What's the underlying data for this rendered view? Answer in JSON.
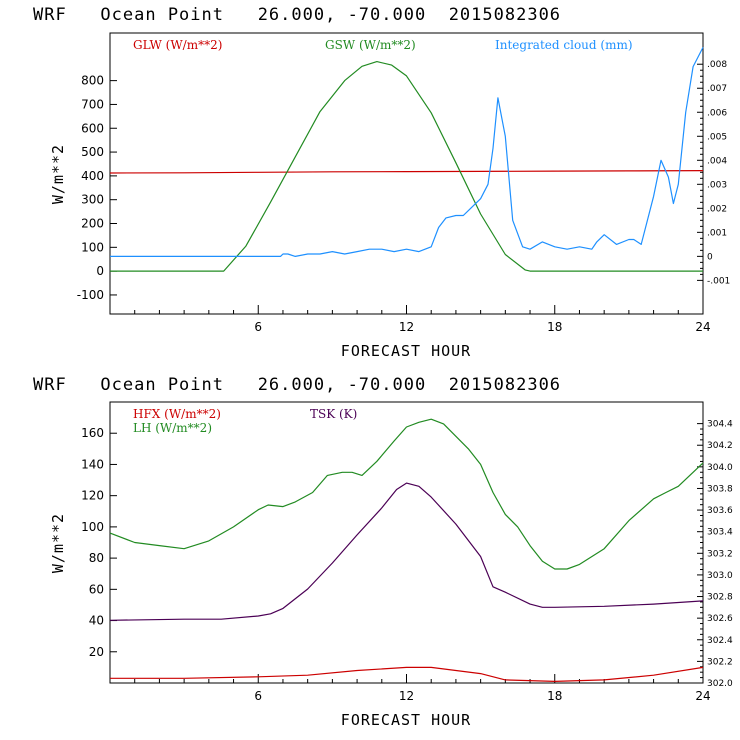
{
  "chart_data": [
    {
      "type": "line",
      "title": "WRF   Ocean Point   26.000, -70.000  2015082306",
      "xlabel": "FORECAST HOUR",
      "ylabel": "W/m**2",
      "xlim": [
        0,
        24
      ],
      "ylim": [
        -180,
        1000
      ],
      "xticks": [
        6,
        12,
        18,
        24
      ],
      "yticks": [
        -100,
        0,
        100,
        200,
        300,
        400,
        500,
        600,
        700,
        800
      ],
      "y2lim": [
        -0.0024,
        0.0093
      ],
      "y2ticks": [
        -0.001,
        0,
        0.001,
        0.002,
        0.003,
        0.004,
        0.005,
        0.006,
        0.007,
        0.008
      ],
      "y2ticklabels": [
        "-.001",
        "0",
        ".001",
        ".002",
        ".003",
        ".004",
        ".005",
        ".006",
        ".007",
        ".008"
      ],
      "series": [
        {
          "name": "GLW (W/m**2)",
          "color": "#cc0000",
          "axis": "left",
          "x": [
            0,
            3,
            6,
            9,
            12,
            15,
            18,
            21,
            24
          ],
          "y": [
            412,
            413,
            415,
            417,
            418,
            419,
            420,
            421,
            422
          ]
        },
        {
          "name": "GSW (W/m**2)",
          "color": "#228b22",
          "axis": "left",
          "x": [
            0,
            4.6,
            5.5,
            6.5,
            7.5,
            8.5,
            9.5,
            10.2,
            10.8,
            11.4,
            12,
            13,
            14,
            15,
            16,
            16.8,
            17,
            24
          ],
          "y": [
            0,
            0,
            105,
            290,
            480,
            670,
            800,
            860,
            880,
            865,
            820,
            665,
            455,
            240,
            70,
            5,
            0,
            0
          ]
        },
        {
          "name": "Integrated cloud (mm)",
          "color": "#1e90ff",
          "axis": "right",
          "x": [
            0,
            3,
            6,
            6.9,
            7.0,
            7.2,
            7.5,
            8,
            8.5,
            9,
            9.5,
            10,
            10.5,
            11,
            11.5,
            12,
            12.5,
            13,
            13.3,
            13.6,
            14,
            14.3,
            14.6,
            15,
            15.3,
            15.5,
            15.7,
            16,
            16.3,
            16.7,
            17,
            17.5,
            18,
            18.5,
            19,
            19.5,
            19.7,
            20,
            20.5,
            21,
            21.2,
            21.5,
            22,
            22.3,
            22.6,
            22.8,
            23,
            23.3,
            23.6,
            24
          ],
          "y": [
            0,
            0,
            0,
            0,
            0.0001,
            0.0001,
            0,
            0.0001,
            0.0001,
            0.0002,
            0.0001,
            0.0002,
            0.0003,
            0.0003,
            0.0002,
            0.0003,
            0.0002,
            0.0004,
            0.0012,
            0.0016,
            0.0017,
            0.0017,
            0.002,
            0.0024,
            0.003,
            0.0045,
            0.0066,
            0.005,
            0.0015,
            0.0004,
            0.0003,
            0.0006,
            0.0004,
            0.0003,
            0.0004,
            0.0003,
            0.0006,
            0.0009,
            0.0005,
            0.0007,
            0.0007,
            0.0005,
            0.0025,
            0.004,
            0.0033,
            0.0022,
            0.003,
            0.006,
            0.0079,
            0.0087
          ]
        }
      ]
    },
    {
      "type": "line",
      "title": "WRF   Ocean Point   26.000, -70.000  2015082306",
      "xlabel": "FORECAST HOUR",
      "ylabel": "W/m**2",
      "xlim": [
        0,
        24
      ],
      "ylim": [
        0,
        180
      ],
      "xticks": [
        6,
        12,
        18,
        24
      ],
      "yticks": [
        20,
        40,
        60,
        80,
        100,
        120,
        140,
        160
      ],
      "y2lim": [
        302.0,
        304.6
      ],
      "y2ticks": [
        302.0,
        302.2,
        302.4,
        302.6,
        302.8,
        303.0,
        303.2,
        303.4,
        303.6,
        303.8,
        304.0,
        304.2,
        304.4
      ],
      "y2ticklabels": [
        "302.0",
        "302.2",
        "302.4",
        "302.6",
        "302.8",
        "303.0",
        "303.2",
        "303.4",
        "303.6",
        "303.8",
        "304.0",
        "304.2",
        "304.4"
      ],
      "series": [
        {
          "name": "HFX (W/m**2)",
          "color": "#cc0000",
          "axis": "left",
          "x": [
            0,
            3,
            6,
            8,
            10,
            12,
            13,
            15,
            16,
            18,
            20,
            22,
            24
          ],
          "y": [
            3,
            3,
            4,
            5,
            8,
            10,
            10,
            6,
            2,
            1,
            2,
            5,
            10
          ]
        },
        {
          "name": "LH (W/m**2)",
          "color": "#228b22",
          "axis": "left",
          "x": [
            0,
            1,
            2,
            3,
            4,
            5,
            6,
            6.4,
            7,
            7.5,
            8.2,
            8.8,
            9.4,
            9.8,
            10.2,
            10.8,
            11.5,
            12,
            12.5,
            13,
            13.5,
            14,
            14.5,
            15,
            15.5,
            16,
            16.5,
            17,
            17.5,
            18,
            18.5,
            19,
            20,
            21,
            22,
            22.5,
            23,
            24
          ],
          "y": [
            96,
            90,
            88,
            86,
            91,
            100,
            111,
            114,
            113,
            116,
            122,
            133,
            135,
            135,
            133,
            142,
            155,
            164,
            167,
            169,
            166,
            158,
            150,
            140,
            122,
            108,
            100,
            88,
            78,
            73,
            73,
            76,
            86,
            104,
            118,
            122,
            126,
            141
          ]
        },
        {
          "name": "TSK (K)",
          "color": "#4b0055",
          "axis": "right",
          "x": [
            0,
            3,
            4.5,
            6,
            6.5,
            7,
            8,
            9,
            10,
            11,
            11.6,
            12,
            12.5,
            13,
            14,
            15,
            15.5,
            16,
            17,
            17.5,
            18,
            20,
            22,
            24
          ],
          "y": [
            302.58,
            302.59,
            302.59,
            302.62,
            302.64,
            302.69,
            302.87,
            303.11,
            303.37,
            303.62,
            303.79,
            303.85,
            303.82,
            303.72,
            303.47,
            303.17,
            302.89,
            302.84,
            302.73,
            302.7,
            302.7,
            302.71,
            302.73,
            302.76
          ]
        }
      ]
    }
  ]
}
